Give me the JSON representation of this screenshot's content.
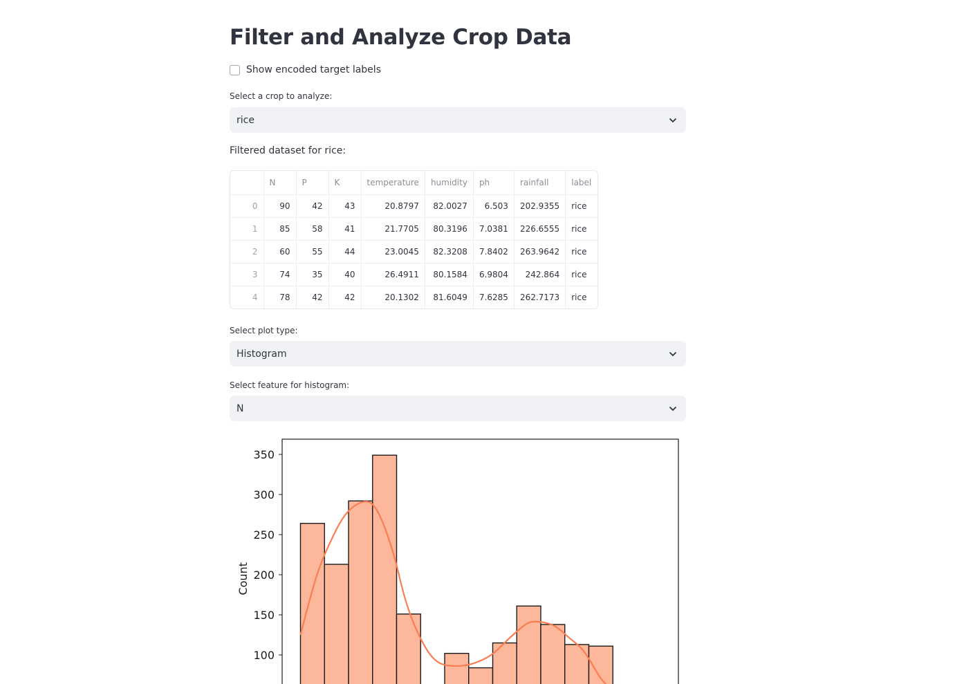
{
  "page": {
    "title": "Filter and Analyze Crop Data",
    "checkbox_label": "Show encoded target labels",
    "crop_select_label": "Select a crop to analyze:",
    "crop_selected": "rice",
    "filtered_caption": "Filtered dataset for rice:",
    "plot_select_label": "Select plot type:",
    "plot_selected": "Histogram",
    "feature_select_label": "Select feature for histogram:",
    "feature_selected": "N"
  },
  "table": {
    "columns": [
      "",
      "N",
      "P",
      "K",
      "temperature",
      "humidity",
      "ph",
      "rainfall",
      "label"
    ],
    "rows": [
      [
        "0",
        "90",
        "42",
        "43",
        "20.8797",
        "82.0027",
        "6.503",
        "202.9355",
        "rice"
      ],
      [
        "1",
        "85",
        "58",
        "41",
        "21.7705",
        "80.3196",
        "7.0381",
        "226.6555",
        "rice"
      ],
      [
        "2",
        "60",
        "55",
        "44",
        "23.0045",
        "82.3208",
        "7.8402",
        "263.9642",
        "rice"
      ],
      [
        "3",
        "74",
        "35",
        "40",
        "26.4911",
        "80.1584",
        "6.9804",
        "242.864",
        "rice"
      ],
      [
        "4",
        "78",
        "42",
        "42",
        "20.1302",
        "81.6049",
        "7.6285",
        "262.7173",
        "rice"
      ]
    ]
  },
  "chart_data": {
    "type": "bar",
    "ylabel": "Count",
    "yticks": [
      100,
      150,
      200,
      250,
      300,
      350
    ],
    "ylim_visible": [
      63,
      368
    ],
    "bins": [
      {
        "value": 264
      },
      {
        "value": 213
      },
      {
        "value": 292
      },
      {
        "value": 349
      },
      {
        "value": 151
      },
      {
        "value": 0
      },
      {
        "value": 102
      },
      {
        "value": 84
      },
      {
        "value": 115
      },
      {
        "value": 161
      },
      {
        "value": 138
      },
      {
        "value": 113
      },
      {
        "value": 111
      }
    ],
    "kde": [
      [
        0.0,
        125
      ],
      [
        0.3,
        170
      ],
      [
        0.6,
        210
      ],
      [
        1.0,
        245
      ],
      [
        1.3,
        268
      ],
      [
        1.6,
        283
      ],
      [
        2.0,
        292
      ],
      [
        2.3,
        290
      ],
      [
        2.6,
        270
      ],
      [
        3.0,
        225
      ],
      [
        3.3,
        175
      ],
      [
        3.6,
        140
      ],
      [
        4.0,
        108
      ],
      [
        4.3,
        93
      ],
      [
        4.6,
        87
      ],
      [
        5.0,
        86
      ],
      [
        5.3,
        87
      ],
      [
        5.6,
        90
      ],
      [
        6.0,
        97
      ],
      [
        6.3,
        106
      ],
      [
        6.6,
        118
      ],
      [
        7.0,
        132
      ],
      [
        7.3,
        141
      ],
      [
        7.6,
        142
      ],
      [
        8.0,
        139
      ],
      [
        8.3,
        132
      ],
      [
        8.6,
        121
      ],
      [
        9.0,
        109
      ],
      [
        9.3,
        91
      ],
      [
        9.6,
        70
      ],
      [
        10.0,
        55
      ]
    ],
    "colors": {
      "bar": "#fdb89c",
      "edge": "#1a1a1a",
      "kde": "#fb7d52"
    }
  }
}
